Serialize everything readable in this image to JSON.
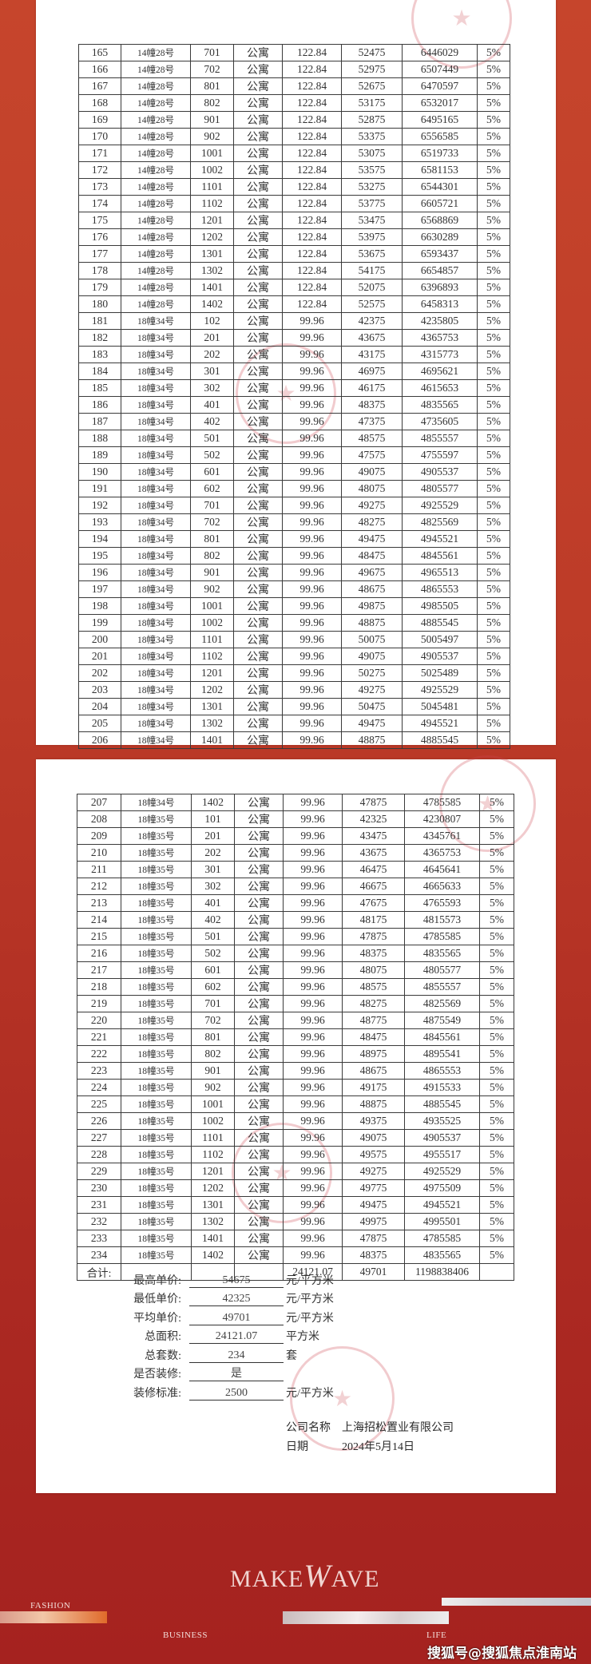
{
  "table_page1": {
    "rows": [
      [
        "165",
        "14幢28号",
        "701",
        "公寓",
        "122.84",
        "52475",
        "6446029",
        "5%"
      ],
      [
        "166",
        "14幢28号",
        "702",
        "公寓",
        "122.84",
        "52975",
        "6507449",
        "5%"
      ],
      [
        "167",
        "14幢28号",
        "801",
        "公寓",
        "122.84",
        "52675",
        "6470597",
        "5%"
      ],
      [
        "168",
        "14幢28号",
        "802",
        "公寓",
        "122.84",
        "53175",
        "6532017",
        "5%"
      ],
      [
        "169",
        "14幢28号",
        "901",
        "公寓",
        "122.84",
        "52875",
        "6495165",
        "5%"
      ],
      [
        "170",
        "14幢28号",
        "902",
        "公寓",
        "122.84",
        "53375",
        "6556585",
        "5%"
      ],
      [
        "171",
        "14幢28号",
        "1001",
        "公寓",
        "122.84",
        "53075",
        "6519733",
        "5%"
      ],
      [
        "172",
        "14幢28号",
        "1002",
        "公寓",
        "122.84",
        "53575",
        "6581153",
        "5%"
      ],
      [
        "173",
        "14幢28号",
        "1101",
        "公寓",
        "122.84",
        "53275",
        "6544301",
        "5%"
      ],
      [
        "174",
        "14幢28号",
        "1102",
        "公寓",
        "122.84",
        "53775",
        "6605721",
        "5%"
      ],
      [
        "175",
        "14幢28号",
        "1201",
        "公寓",
        "122.84",
        "53475",
        "6568869",
        "5%"
      ],
      [
        "176",
        "14幢28号",
        "1202",
        "公寓",
        "122.84",
        "53975",
        "6630289",
        "5%"
      ],
      [
        "177",
        "14幢28号",
        "1301",
        "公寓",
        "122.84",
        "53675",
        "6593437",
        "5%"
      ],
      [
        "178",
        "14幢28号",
        "1302",
        "公寓",
        "122.84",
        "54175",
        "6654857",
        "5%"
      ],
      [
        "179",
        "14幢28号",
        "1401",
        "公寓",
        "122.84",
        "52075",
        "6396893",
        "5%"
      ],
      [
        "180",
        "14幢28号",
        "1402",
        "公寓",
        "122.84",
        "52575",
        "6458313",
        "5%"
      ],
      [
        "181",
        "18幢34号",
        "102",
        "公寓",
        "99.96",
        "42375",
        "4235805",
        "5%"
      ],
      [
        "182",
        "18幢34号",
        "201",
        "公寓",
        "99.96",
        "43675",
        "4365753",
        "5%"
      ],
      [
        "183",
        "18幢34号",
        "202",
        "公寓",
        "99.96",
        "43175",
        "4315773",
        "5%"
      ],
      [
        "184",
        "18幢34号",
        "301",
        "公寓",
        "99.96",
        "46975",
        "4695621",
        "5%"
      ],
      [
        "185",
        "18幢34号",
        "302",
        "公寓",
        "99.96",
        "46175",
        "4615653",
        "5%"
      ],
      [
        "186",
        "18幢34号",
        "401",
        "公寓",
        "99.96",
        "48375",
        "4835565",
        "5%"
      ],
      [
        "187",
        "18幢34号",
        "402",
        "公寓",
        "99.96",
        "47375",
        "4735605",
        "5%"
      ],
      [
        "188",
        "18幢34号",
        "501",
        "公寓",
        "99.96",
        "48575",
        "4855557",
        "5%"
      ],
      [
        "189",
        "18幢34号",
        "502",
        "公寓",
        "99.96",
        "47575",
        "4755597",
        "5%"
      ],
      [
        "190",
        "18幢34号",
        "601",
        "公寓",
        "99.96",
        "49075",
        "4905537",
        "5%"
      ],
      [
        "191",
        "18幢34号",
        "602",
        "公寓",
        "99.96",
        "48075",
        "4805577",
        "5%"
      ],
      [
        "192",
        "18幢34号",
        "701",
        "公寓",
        "99.96",
        "49275",
        "4925529",
        "5%"
      ],
      [
        "193",
        "18幢34号",
        "702",
        "公寓",
        "99.96",
        "48275",
        "4825569",
        "5%"
      ],
      [
        "194",
        "18幢34号",
        "801",
        "公寓",
        "99.96",
        "49475",
        "4945521",
        "5%"
      ],
      [
        "195",
        "18幢34号",
        "802",
        "公寓",
        "99.96",
        "48475",
        "4845561",
        "5%"
      ],
      [
        "196",
        "18幢34号",
        "901",
        "公寓",
        "99.96",
        "49675",
        "4965513",
        "5%"
      ],
      [
        "197",
        "18幢34号",
        "902",
        "公寓",
        "99.96",
        "48675",
        "4865553",
        "5%"
      ],
      [
        "198",
        "18幢34号",
        "1001",
        "公寓",
        "99.96",
        "49875",
        "4985505",
        "5%"
      ],
      [
        "199",
        "18幢34号",
        "1002",
        "公寓",
        "99.96",
        "48875",
        "4885545",
        "5%"
      ],
      [
        "200",
        "18幢34号",
        "1101",
        "公寓",
        "99.96",
        "50075",
        "5005497",
        "5%"
      ],
      [
        "201",
        "18幢34号",
        "1102",
        "公寓",
        "99.96",
        "49075",
        "4905537",
        "5%"
      ],
      [
        "202",
        "18幢34号",
        "1201",
        "公寓",
        "99.96",
        "50275",
        "5025489",
        "5%"
      ],
      [
        "203",
        "18幢34号",
        "1202",
        "公寓",
        "99.96",
        "49275",
        "4925529",
        "5%"
      ],
      [
        "204",
        "18幢34号",
        "1301",
        "公寓",
        "99.96",
        "50475",
        "5045481",
        "5%"
      ],
      [
        "205",
        "18幢34号",
        "1302",
        "公寓",
        "99.96",
        "49475",
        "4945521",
        "5%"
      ],
      [
        "206",
        "18幢34号",
        "1401",
        "公寓",
        "99.96",
        "48875",
        "4885545",
        "5%"
      ]
    ]
  },
  "table_page2": {
    "rows": [
      [
        "207",
        "18幢34号",
        "1402",
        "公寓",
        "99.96",
        "47875",
        "4785585",
        "5%"
      ],
      [
        "208",
        "18幢35号",
        "101",
        "公寓",
        "99.96",
        "42325",
        "4230807",
        "5%"
      ],
      [
        "209",
        "18幢35号",
        "201",
        "公寓",
        "99.96",
        "43475",
        "4345761",
        "5%"
      ],
      [
        "210",
        "18幢35号",
        "202",
        "公寓",
        "99.96",
        "43675",
        "4365753",
        "5%"
      ],
      [
        "211",
        "18幢35号",
        "301",
        "公寓",
        "99.96",
        "46475",
        "4645641",
        "5%"
      ],
      [
        "212",
        "18幢35号",
        "302",
        "公寓",
        "99.96",
        "46675",
        "4665633",
        "5%"
      ],
      [
        "213",
        "18幢35号",
        "401",
        "公寓",
        "99.96",
        "47675",
        "4765593",
        "5%"
      ],
      [
        "214",
        "18幢35号",
        "402",
        "公寓",
        "99.96",
        "48175",
        "4815573",
        "5%"
      ],
      [
        "215",
        "18幢35号",
        "501",
        "公寓",
        "99.96",
        "47875",
        "4785585",
        "5%"
      ],
      [
        "216",
        "18幢35号",
        "502",
        "公寓",
        "99.96",
        "48375",
        "4835565",
        "5%"
      ],
      [
        "217",
        "18幢35号",
        "601",
        "公寓",
        "99.96",
        "48075",
        "4805577",
        "5%"
      ],
      [
        "218",
        "18幢35号",
        "602",
        "公寓",
        "99.96",
        "48575",
        "4855557",
        "5%"
      ],
      [
        "219",
        "18幢35号",
        "701",
        "公寓",
        "99.96",
        "48275",
        "4825569",
        "5%"
      ],
      [
        "220",
        "18幢35号",
        "702",
        "公寓",
        "99.96",
        "48775",
        "4875549",
        "5%"
      ],
      [
        "221",
        "18幢35号",
        "801",
        "公寓",
        "99.96",
        "48475",
        "4845561",
        "5%"
      ],
      [
        "222",
        "18幢35号",
        "802",
        "公寓",
        "99.96",
        "48975",
        "4895541",
        "5%"
      ],
      [
        "223",
        "18幢35号",
        "901",
        "公寓",
        "99.96",
        "48675",
        "4865553",
        "5%"
      ],
      [
        "224",
        "18幢35号",
        "902",
        "公寓",
        "99.96",
        "49175",
        "4915533",
        "5%"
      ],
      [
        "225",
        "18幢35号",
        "1001",
        "公寓",
        "99.96",
        "48875",
        "4885545",
        "5%"
      ],
      [
        "226",
        "18幢35号",
        "1002",
        "公寓",
        "99.96",
        "49375",
        "4935525",
        "5%"
      ],
      [
        "227",
        "18幢35号",
        "1101",
        "公寓",
        "99.96",
        "49075",
        "4905537",
        "5%"
      ],
      [
        "228",
        "18幢35号",
        "1102",
        "公寓",
        "99.96",
        "49575",
        "4955517",
        "5%"
      ],
      [
        "229",
        "18幢35号",
        "1201",
        "公寓",
        "99.96",
        "49275",
        "4925529",
        "5%"
      ],
      [
        "230",
        "18幢35号",
        "1202",
        "公寓",
        "99.96",
        "49775",
        "4975509",
        "5%"
      ],
      [
        "231",
        "18幢35号",
        "1301",
        "公寓",
        "99.96",
        "49475",
        "4945521",
        "5%"
      ],
      [
        "232",
        "18幢35号",
        "1302",
        "公寓",
        "99.96",
        "49975",
        "4995501",
        "5%"
      ],
      [
        "233",
        "18幢35号",
        "1401",
        "公寓",
        "99.96",
        "47875",
        "4785585",
        "5%"
      ],
      [
        "234",
        "18幢35号",
        "1402",
        "公寓",
        "99.96",
        "48375",
        "4835565",
        "5%"
      ],
      [
        "合计:",
        "",
        "",
        "",
        "24121.07",
        "49701",
        "1198838406",
        ""
      ]
    ]
  },
  "summary": [
    {
      "label": "最高单价:",
      "value": "54675",
      "unit": "元/平方米"
    },
    {
      "label": "最低单价:",
      "value": "42325",
      "unit": "元/平方米"
    },
    {
      "label": "平均单价:",
      "value": "49701",
      "unit": "元/平方米"
    },
    {
      "label": "总面积:",
      "value": "24121.07",
      "unit": "平方米"
    },
    {
      "label": "总套数:",
      "value": "234",
      "unit": "套"
    },
    {
      "label": "是否装修:",
      "value": "是",
      "unit": ""
    },
    {
      "label": "装修标准:",
      "value": "2500",
      "unit": "元/平方米"
    }
  ],
  "company": {
    "name_label": "公司名称",
    "name": "上海招松置业有限公司",
    "date_label": "日期",
    "date": "2024年5月14日"
  },
  "stamp_text": "上海招松置业有限公司",
  "footer": {
    "logo_make": "MAKE",
    "logo_w": "W",
    "logo_ave": "AVE",
    "tag_fashion": "FASHION",
    "tag_business": "BUSINESS",
    "tag_life": "LIFE",
    "watermark": "搜狐号@搜狐焦点淮南站"
  },
  "colors": {
    "background": "#b83426",
    "stamp": "#cd4650"
  }
}
